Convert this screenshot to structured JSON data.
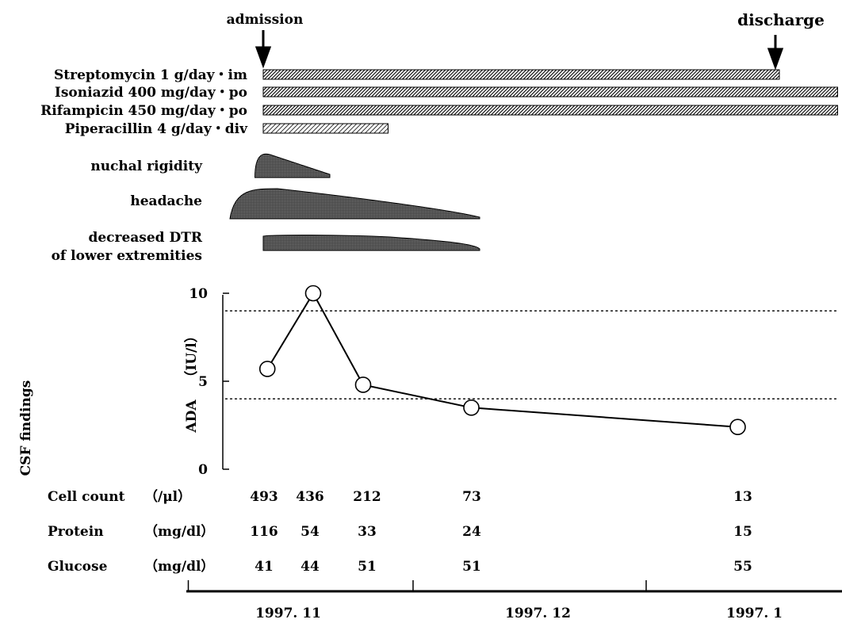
{
  "events": {
    "admission": "admission",
    "discharge": "discharge"
  },
  "colors": {
    "bar_fill": "#3a3a3a",
    "symptom_fill": "#5a5a5a",
    "line": "#000000",
    "marker_fill": "#ffffff"
  },
  "chart_data": {
    "type": "line",
    "drugs": [
      {
        "label": "Streptomycin 1 g/day・im",
        "start_day": 0,
        "end_day": 62,
        "pattern": "dense"
      },
      {
        "label": "Isoniazid 400 mg/day・po",
        "start_day": 0,
        "end_day": 69,
        "pattern": "dense"
      },
      {
        "label": "Rifampicin 450 mg/day・po",
        "start_day": 0,
        "end_day": 69,
        "pattern": "dense"
      },
      {
        "label": "Piperacillin 4 g/day・div",
        "start_day": 0,
        "end_day": 15,
        "pattern": "light"
      }
    ],
    "symptoms": [
      {
        "label": "nuchal rigidity",
        "start_day": -1,
        "end_day": 8
      },
      {
        "label": "headache",
        "start_day": -4,
        "end_day": 26
      },
      {
        "label": "decreased DTR",
        "label2": "of lower extremities",
        "start_day": 0,
        "end_day": 26
      }
    ],
    "ada": {
      "ylabel": "ADA",
      "yunit": "（IU/l）",
      "side_label": "CSF findings",
      "ylim": [
        0,
        10
      ],
      "yticks": [
        0,
        5,
        10
      ],
      "reference_lines": [
        9,
        4
      ],
      "series": [
        {
          "values": [
            {
              "day": 0.5,
              "value": 5.7
            },
            {
              "day": 6,
              "value": 10
            },
            {
              "day": 12,
              "value": 4.8
            },
            {
              "day": 25,
              "value": 3.5
            },
            {
              "day": 57,
              "value": 2.4
            }
          ]
        }
      ]
    },
    "csf_table": {
      "rows": [
        {
          "label": "Cell count",
          "unit": "（/μl）",
          "values": [
            "493",
            "436",
            "212",
            "73",
            "13"
          ]
        },
        {
          "label": "Protein",
          "unit": "（mg/dl）",
          "values": [
            "116",
            "54",
            "33",
            "24",
            "15"
          ]
        },
        {
          "label": "Glucose",
          "unit": "（mg/dl）",
          "values": [
            "41",
            "44",
            "51",
            "51",
            "55"
          ]
        }
      ],
      "columns_day": [
        0,
        6,
        12,
        25,
        57
      ]
    },
    "time_axis": {
      "months": [
        {
          "label": "1997. 11",
          "center_day": 3
        },
        {
          "label": "1997. 12",
          "center_day": 33
        },
        {
          "label": "1997. 1",
          "center_day": 59
        }
      ],
      "boundaries_day": [
        -9,
        18,
        46
      ]
    }
  }
}
